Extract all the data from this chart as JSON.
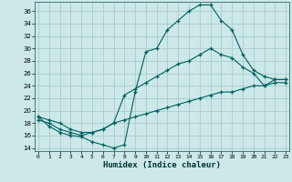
{
  "xlabel": "Humidex (Indice chaleur)",
  "bg_color": "#cce8e8",
  "grid_color": "#aacccc",
  "line_color": "#006060",
  "line1_x": [
    0,
    1,
    2,
    3,
    4,
    5,
    6,
    7,
    8,
    9,
    10,
    11,
    12,
    13,
    14,
    15,
    16,
    17,
    18,
    19,
    20,
    21,
    22,
    23
  ],
  "line1_y": [
    19,
    17.5,
    16.5,
    16,
    15.8,
    15,
    14.5,
    14,
    14.5,
    23,
    29.5,
    30,
    33,
    34.5,
    36,
    37,
    37,
    34.5,
    33,
    29,
    26.5,
    25.5,
    25,
    25
  ],
  "line2_x": [
    0,
    1,
    2,
    3,
    4,
    5,
    6,
    7,
    8,
    9,
    10,
    11,
    12,
    13,
    14,
    15,
    16,
    17,
    18,
    19,
    20,
    21,
    22,
    23
  ],
  "line2_y": [
    19,
    18.5,
    18,
    17,
    16.5,
    16.5,
    17,
    18,
    22.5,
    23.5,
    24.5,
    25.5,
    26.5,
    27.5,
    28,
    29,
    30,
    29,
    28.5,
    27,
    26,
    24,
    25,
    25
  ],
  "line3_x": [
    0,
    1,
    2,
    3,
    4,
    5,
    6,
    7,
    8,
    9,
    10,
    11,
    12,
    13,
    14,
    15,
    16,
    17,
    18,
    19,
    20,
    21,
    22,
    23
  ],
  "line3_y": [
    18.5,
    18,
    17,
    16.5,
    16,
    16.5,
    17,
    18,
    18.5,
    19,
    19.5,
    20,
    20.5,
    21,
    21.5,
    22,
    22.5,
    23,
    23,
    23.5,
    24,
    24,
    24.5,
    24.5
  ],
  "xlim": [
    -0.3,
    23.3
  ],
  "ylim": [
    13.5,
    37.5
  ],
  "yticks": [
    14,
    16,
    18,
    20,
    22,
    24,
    26,
    28,
    30,
    32,
    34,
    36
  ],
  "xticks": [
    0,
    1,
    2,
    3,
    4,
    5,
    6,
    7,
    8,
    9,
    10,
    11,
    12,
    13,
    14,
    15,
    16,
    17,
    18,
    19,
    20,
    21,
    22,
    23
  ]
}
